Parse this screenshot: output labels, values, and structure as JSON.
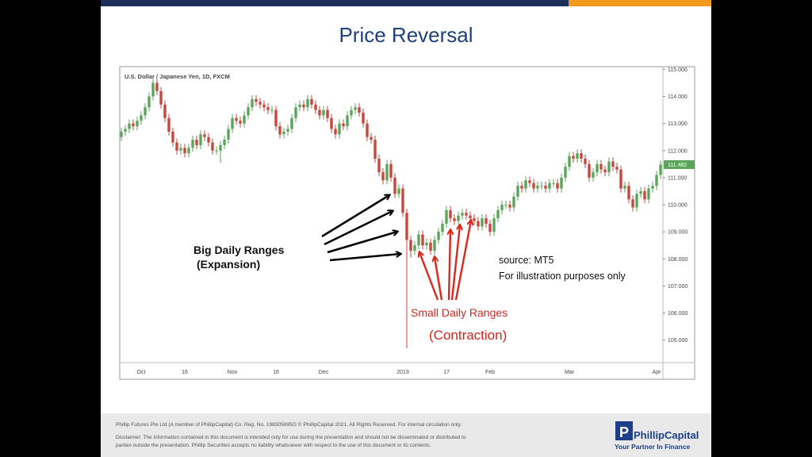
{
  "slide": {
    "title": "Price Reversal"
  },
  "chart_data": {
    "type": "candlestick",
    "title": "U.S. Dollar / Japanese Yen, 1D, FXCM",
    "up_color": "#5aa55a",
    "down_color": "#c8463c",
    "categories": [
      null,
      null,
      null,
      null,
      null,
      "Oct",
      null,
      null,
      null,
      null,
      null,
      null,
      null,
      null,
      null,
      null,
      "16",
      null,
      null,
      null,
      null,
      null,
      null,
      null,
      null,
      null,
      null,
      null,
      "Nov",
      null,
      null,
      null,
      null,
      null,
      null,
      null,
      null,
      null,
      null,
      "16",
      null,
      null,
      null,
      null,
      null,
      null,
      null,
      null,
      null,
      null,
      null,
      "Dec",
      null,
      null,
      null,
      null,
      null,
      null,
      null,
      null,
      null,
      null,
      null,
      null,
      null,
      null,
      null,
      null,
      null,
      null,
      null,
      "2019",
      null,
      null,
      null,
      null,
      null,
      null,
      null,
      null,
      null,
      null,
      "17",
      null,
      null,
      null,
      null,
      null,
      null,
      null,
      null,
      null,
      null,
      "Feb",
      null,
      null,
      null,
      null,
      null,
      null,
      null,
      null,
      null,
      null,
      null,
      null,
      null,
      null,
      null,
      null,
      null,
      null,
      null,
      "Mar",
      null,
      null,
      null,
      null,
      null,
      null,
      null,
      null,
      null,
      null,
      null,
      null,
      null,
      null,
      null,
      null,
      null,
      null,
      null,
      null,
      null,
      "Apr",
      null
    ],
    "open": [
      112.5,
      112.7,
      112.8,
      113.0,
      112.9,
      113.1,
      113.3,
      113.6,
      114.0,
      114.5,
      114.2,
      113.7,
      113.2,
      112.7,
      112.3,
      112.0,
      112.1,
      111.9,
      112.1,
      112.4,
      112.2,
      112.6,
      112.5,
      112.3,
      112.0,
      112.0,
      112.2,
      112.4,
      112.8,
      113.2,
      113.1,
      113.0,
      113.3,
      113.6,
      113.9,
      113.8,
      113.7,
      113.6,
      113.5,
      113.5,
      112.9,
      112.6,
      112.7,
      112.8,
      113.2,
      113.6,
      113.7,
      113.6,
      113.9,
      113.7,
      113.5,
      113.3,
      113.5,
      113.2,
      112.8,
      112.6,
      113.0,
      112.9,
      113.3,
      113.5,
      113.6,
      113.4,
      113.0,
      112.5,
      112.4,
      111.7,
      111.2,
      110.9,
      111.5,
      111.0,
      110.4,
      110.6,
      109.7,
      108.7,
      108.3,
      108.5,
      108.9,
      108.5,
      108.6,
      108.3,
      108.7,
      109.0,
      109.3,
      109.8,
      109.5,
      109.4,
      109.6,
      109.7,
      109.6,
      109.5,
      109.4,
      109.2,
      109.5,
      109.3,
      109.0,
      109.5,
      109.8,
      110.0,
      110.0,
      109.9,
      110.3,
      110.7,
      110.6,
      110.9,
      110.8,
      110.6,
      110.7,
      110.7,
      110.6,
      110.8,
      110.8,
      110.6,
      111.0,
      111.4,
      111.8,
      111.7,
      111.9,
      111.7,
      111.5,
      111.0,
      111.2,
      111.5,
      111.3,
      111.2,
      111.6,
      111.4,
      111.3,
      110.6,
      110.7,
      110.2,
      109.9,
      110.4,
      110.5,
      110.2,
      110.6,
      110.7,
      111.1
    ],
    "high": [
      112.85,
      112.95,
      113.15,
      113.15,
      113.25,
      113.45,
      113.75,
      114.15,
      114.65,
      114.65,
      114.35,
      113.85,
      113.35,
      112.85,
      112.45,
      112.25,
      112.25,
      112.25,
      112.55,
      112.55,
      112.75,
      112.75,
      112.65,
      112.45,
      112.15,
      112.35,
      112.55,
      112.95,
      113.35,
      113.35,
      113.25,
      113.45,
      113.75,
      114.05,
      114.05,
      113.95,
      113.85,
      113.75,
      113.65,
      113.65,
      113.05,
      112.85,
      112.95,
      113.35,
      113.75,
      113.85,
      113.85,
      114.05,
      114.05,
      113.85,
      113.65,
      113.65,
      113.65,
      113.35,
      112.95,
      113.15,
      113.15,
      113.45,
      113.65,
      113.75,
      113.75,
      113.55,
      113.15,
      112.65,
      112.55,
      111.85,
      111.35,
      111.65,
      111.65,
      111.15,
      110.75,
      110.75,
      109.85,
      108.85,
      108.65,
      109.05,
      109.05,
      108.75,
      108.75,
      108.85,
      109.15,
      109.45,
      109.95,
      109.95,
      109.65,
      109.75,
      109.85,
      109.85,
      109.75,
      109.65,
      109.55,
      109.65,
      109.65,
      109.45,
      109.65,
      109.95,
      110.15,
      110.15,
      110.15,
      110.45,
      110.85,
      110.85,
      111.05,
      111.05,
      110.95,
      110.85,
      110.85,
      110.85,
      110.95,
      110.95,
      110.95,
      111.15,
      111.55,
      111.95,
      111.95,
      112.05,
      112.05,
      111.85,
      111.65,
      111.35,
      111.65,
      111.65,
      111.45,
      111.75,
      111.75,
      111.55,
      111.45,
      110.85,
      110.85,
      110.35,
      110.55,
      110.65,
      110.65,
      110.75,
      110.85,
      111.25,
      111.63
    ],
    "low": [
      112.35,
      112.55,
      112.65,
      112.75,
      112.75,
      112.95,
      113.15,
      113.45,
      113.85,
      114.05,
      113.55,
      113.05,
      112.55,
      112.15,
      111.85,
      111.85,
      111.75,
      111.75,
      111.95,
      112.05,
      112.05,
      112.35,
      112.15,
      111.85,
      111.85,
      111.55,
      112.05,
      112.25,
      112.65,
      112.95,
      112.85,
      112.85,
      113.15,
      113.45,
      113.65,
      113.55,
      113.45,
      113.35,
      113.35,
      112.75,
      112.45,
      112.45,
      112.55,
      112.65,
      113.05,
      113.45,
      113.45,
      113.45,
      113.55,
      113.35,
      113.15,
      113.15,
      113.05,
      112.65,
      112.45,
      112.45,
      112.75,
      112.75,
      113.15,
      113.35,
      113.25,
      112.85,
      112.35,
      112.25,
      111.55,
      111.05,
      110.75,
      110.75,
      110.85,
      110.25,
      110.25,
      109.55,
      104.7,
      108.05,
      108.15,
      108.35,
      108.35,
      108.35,
      108.15,
      108.15,
      108.55,
      108.85,
      109.15,
      109.35,
      109.25,
      109.25,
      109.45,
      109.45,
      109.35,
      109.25,
      109.05,
      109.05,
      109.15,
      108.85,
      108.85,
      109.35,
      109.65,
      109.85,
      109.75,
      109.75,
      110.15,
      110.45,
      110.45,
      110.65,
      110.45,
      110.45,
      110.55,
      110.45,
      110.45,
      110.65,
      110.45,
      110.45,
      110.85,
      111.25,
      111.55,
      111.55,
      111.55,
      111.35,
      110.85,
      110.85,
      111.05,
      111.15,
      111.05,
      111.05,
      111.25,
      111.15,
      110.45,
      110.45,
      110.05,
      109.75,
      109.75,
      110.25,
      110.05,
      110.05,
      110.45,
      110.55,
      110.95
    ],
    "close": [
      112.7,
      112.8,
      113.0,
      112.9,
      113.1,
      113.3,
      113.6,
      114.0,
      114.5,
      114.2,
      113.7,
      113.2,
      112.7,
      112.3,
      112.0,
      112.1,
      111.9,
      112.1,
      112.4,
      112.2,
      112.6,
      112.5,
      112.3,
      112.0,
      112.0,
      112.2,
      112.4,
      112.8,
      113.2,
      113.1,
      113.0,
      113.3,
      113.6,
      113.9,
      113.8,
      113.7,
      113.6,
      113.5,
      113.5,
      112.9,
      112.6,
      112.7,
      112.8,
      113.2,
      113.6,
      113.7,
      113.6,
      113.9,
      113.7,
      113.5,
      113.3,
      113.5,
      113.2,
      112.8,
      112.6,
      113.0,
      112.9,
      113.3,
      113.5,
      113.6,
      113.4,
      113.0,
      112.5,
      112.4,
      111.7,
      111.2,
      110.9,
      111.5,
      111.0,
      110.4,
      110.6,
      109.7,
      108.7,
      108.3,
      108.5,
      108.9,
      108.5,
      108.6,
      108.3,
      108.7,
      109.0,
      109.3,
      109.8,
      109.5,
      109.4,
      109.6,
      109.7,
      109.6,
      109.5,
      109.4,
      109.2,
      109.5,
      109.3,
      109.0,
      109.5,
      109.8,
      110.0,
      110.0,
      109.9,
      110.3,
      110.7,
      110.6,
      110.9,
      110.8,
      110.6,
      110.7,
      110.7,
      110.6,
      110.8,
      110.8,
      110.6,
      111.0,
      111.4,
      111.8,
      111.7,
      111.9,
      111.7,
      111.5,
      111.0,
      111.2,
      111.5,
      111.3,
      111.2,
      111.6,
      111.4,
      111.3,
      110.6,
      110.7,
      110.2,
      109.9,
      110.4,
      110.5,
      110.2,
      110.6,
      110.7,
      111.1,
      111.482
    ],
    "ylim": [
      104.2,
      115.1
    ],
    "yticks": [
      {
        "value": 105,
        "label": "105.000"
      },
      {
        "value": 106,
        "label": "106.000"
      },
      {
        "value": 107,
        "label": "107.000"
      },
      {
        "value": 108,
        "label": "108.000"
      },
      {
        "value": 109,
        "label": "109.000"
      },
      {
        "value": 110,
        "label": "110.000"
      },
      {
        "value": 111,
        "label": "111.000"
      },
      {
        "value": 112,
        "label": "112.000"
      },
      {
        "value": 113,
        "label": "113.000"
      },
      {
        "value": 114,
        "label": "114.000"
      },
      {
        "value": 115,
        "label": "115.000"
      }
    ],
    "last_price": {
      "value": 111.482,
      "label": "111.482"
    },
    "annotations": [
      "Big Daily Ranges",
      "(Expansion)",
      "Small Daily Ranges",
      "(Contraction)",
      "source:  MT5",
      "For illustration purposes only"
    ]
  },
  "footer": {
    "company": "Phillip Futures Pte Ltd (A member  of PhillipCapital) Co. Reg. No. 198305695G  © PhillipCapital 2021.  All Rights Reserved. For internal circulation only.",
    "disclaimer_1": "Disclaimer: The information contained in this document is intended only for use during the presentation and should not be disseminated or distributed to",
    "disclaimer_2": "parties outside the presentation. Phillip Securities accepts no liability whatsoever with respect to the use of this document or its contents.",
    "logo": "PhillipCapital",
    "tagline": "Your Partner In Finance"
  }
}
